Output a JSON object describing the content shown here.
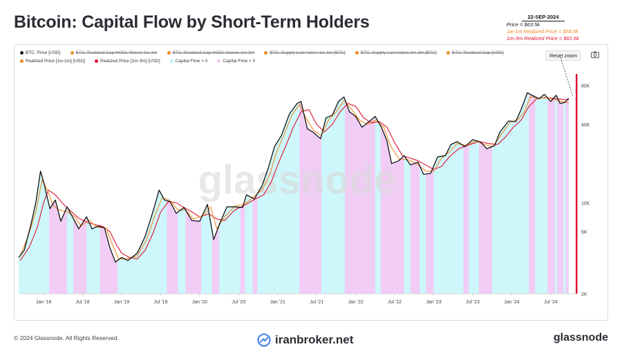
{
  "header": {
    "title": "Bitcoin: Capital Flow by Short-Term Holders"
  },
  "annotation": {
    "date": "22-SEP-2024",
    "price": "Price = $63.5k",
    "rp_1w1m": "1w-1m Realized Price = $58.5k",
    "rp_1m3m": "1m-3m Realized Price = $61.6k"
  },
  "toolbar": {
    "reset_zoom": "Reset zoom"
  },
  "legend": {
    "row1": [
      {
        "label": "BTC: Price [USD]",
        "color": "#111111",
        "active": true
      },
      {
        "label": "BTC: Realized Cap HODL Waves 1w-1m",
        "color": "#f08a24",
        "active": false
      },
      {
        "label": "BTC: Realized Cap HODL Waves 1m-3m",
        "color": "#f08a24",
        "active": false
      },
      {
        "label": "BTC: Supply Last Active 1w-1m [BTC]",
        "color": "#f08a24",
        "active": false
      },
      {
        "label": "BTC: Supply Last Active 1m-3m [BTC]",
        "color": "#f08a24",
        "active": false
      },
      {
        "label": "BTC: Realized Cap [USD]",
        "color": "#f08a24",
        "active": false
      }
    ],
    "row2": [
      {
        "label": "Realized Price [1w-1m] [USD]",
        "color": "#f08a24",
        "active": true
      },
      {
        "label": "Realized Price [1m-3m] [USD]",
        "color": "#e0102e",
        "active": true
      },
      {
        "label": "Capital Flow > 0",
        "color": "#b8f4f8",
        "active": true
      },
      {
        "label": "Capital Flow < 0",
        "color": "#f7c6f4",
        "active": true
      }
    ]
  },
  "chart_data": {
    "type": "line",
    "y_scale": "log",
    "ylim": [
      2000,
      100000
    ],
    "y_ticks": [
      {
        "value": 2000,
        "label": "2K"
      },
      {
        "value": 6000,
        "label": "6K"
      },
      {
        "value": 10000,
        "label": "10K"
      },
      {
        "value": 40000,
        "label": "40K"
      },
      {
        "value": 80000,
        "label": "80K"
      }
    ],
    "xlim": [
      2017.68,
      2024.82
    ],
    "x_ticks": [
      {
        "value": 2018.0,
        "label": "Jan '18"
      },
      {
        "value": 2018.5,
        "label": "Jul '18"
      },
      {
        "value": 2019.0,
        "label": "Jan '19"
      },
      {
        "value": 2019.5,
        "label": "Jul '19"
      },
      {
        "value": 2020.0,
        "label": "Jan '20"
      },
      {
        "value": 2020.5,
        "label": "Jul '20"
      },
      {
        "value": 2021.0,
        "label": "Jan '21"
      },
      {
        "value": 2021.5,
        "label": "Jul '21"
      },
      {
        "value": 2022.0,
        "label": "Jan '22"
      },
      {
        "value": 2022.5,
        "label": "Jul '22"
      },
      {
        "value": 2023.0,
        "label": "Jan '23"
      },
      {
        "value": 2023.5,
        "label": "Jul '23"
      },
      {
        "value": 2024.0,
        "label": "Jan '24"
      },
      {
        "value": 2024.5,
        "label": "Jul '24"
      }
    ],
    "series": [
      {
        "name": "BTC: Price [USD]",
        "color": "#111111",
        "points": [
          [
            2017.68,
            3800
          ],
          [
            2017.75,
            4300
          ],
          [
            2017.83,
            6500
          ],
          [
            2017.9,
            10000
          ],
          [
            2017.96,
            17500
          ],
          [
            2018.0,
            14500
          ],
          [
            2018.08,
            9000
          ],
          [
            2018.15,
            10500
          ],
          [
            2018.22,
            7200
          ],
          [
            2018.3,
            9300
          ],
          [
            2018.38,
            7600
          ],
          [
            2018.45,
            6300
          ],
          [
            2018.55,
            7800
          ],
          [
            2018.62,
            6300
          ],
          [
            2018.7,
            6600
          ],
          [
            2018.78,
            6400
          ],
          [
            2018.85,
            4500
          ],
          [
            2018.92,
            3500
          ],
          [
            2019.0,
            3800
          ],
          [
            2019.08,
            3600
          ],
          [
            2019.2,
            4100
          ],
          [
            2019.3,
            5500
          ],
          [
            2019.4,
            8500
          ],
          [
            2019.48,
            12500
          ],
          [
            2019.55,
            10500
          ],
          [
            2019.62,
            10200
          ],
          [
            2019.7,
            8300
          ],
          [
            2019.8,
            9200
          ],
          [
            2019.9,
            7300
          ],
          [
            2020.0,
            7200
          ],
          [
            2020.1,
            9700
          ],
          [
            2020.18,
            5200
          ],
          [
            2020.26,
            7000
          ],
          [
            2020.35,
            9300
          ],
          [
            2020.45,
            9300
          ],
          [
            2020.55,
            9200
          ],
          [
            2020.6,
            11500
          ],
          [
            2020.7,
            10700
          ],
          [
            2020.8,
            13500
          ],
          [
            2020.88,
            18500
          ],
          [
            2020.96,
            27000
          ],
          [
            2021.05,
            33000
          ],
          [
            2021.15,
            48000
          ],
          [
            2021.25,
            58000
          ],
          [
            2021.3,
            60000
          ],
          [
            2021.38,
            37000
          ],
          [
            2021.45,
            35000
          ],
          [
            2021.55,
            31000
          ],
          [
            2021.62,
            45000
          ],
          [
            2021.7,
            47000
          ],
          [
            2021.78,
            60000
          ],
          [
            2021.85,
            65000
          ],
          [
            2021.92,
            50000
          ],
          [
            2022.0,
            46000
          ],
          [
            2022.08,
            38000
          ],
          [
            2022.17,
            42000
          ],
          [
            2022.25,
            46000
          ],
          [
            2022.33,
            38000
          ],
          [
            2022.4,
            30000
          ],
          [
            2022.46,
            20000
          ],
          [
            2022.55,
            21000
          ],
          [
            2022.62,
            23000
          ],
          [
            2022.7,
            19500
          ],
          [
            2022.8,
            20500
          ],
          [
            2022.87,
            16500
          ],
          [
            2022.96,
            16800
          ],
          [
            2023.05,
            22500
          ],
          [
            2023.15,
            23000
          ],
          [
            2023.22,
            28000
          ],
          [
            2023.3,
            29500
          ],
          [
            2023.4,
            27000
          ],
          [
            2023.5,
            30500
          ],
          [
            2023.6,
            29300
          ],
          [
            2023.68,
            26000
          ],
          [
            2023.78,
            27500
          ],
          [
            2023.85,
            35000
          ],
          [
            2023.96,
            42500
          ],
          [
            2024.05,
            42000
          ],
          [
            2024.12,
            52000
          ],
          [
            2024.2,
            70000
          ],
          [
            2024.28,
            66000
          ],
          [
            2024.35,
            63000
          ],
          [
            2024.42,
            68000
          ],
          [
            2024.5,
            60000
          ],
          [
            2024.57,
            67000
          ],
          [
            2024.62,
            58000
          ],
          [
            2024.68,
            59000
          ],
          [
            2024.73,
            63500
          ]
        ]
      },
      {
        "name": "Realized Price [1w-1m] [USD]",
        "color": "#f08a24",
        "points": [
          [
            2017.7,
            3900
          ],
          [
            2017.8,
            5500
          ],
          [
            2017.9,
            8500
          ],
          [
            2017.98,
            15000
          ],
          [
            2018.05,
            12500
          ],
          [
            2018.12,
            9500
          ],
          [
            2018.2,
            8800
          ],
          [
            2018.3,
            8500
          ],
          [
            2018.4,
            7800
          ],
          [
            2018.48,
            6600
          ],
          [
            2018.58,
            7400
          ],
          [
            2018.68,
            6500
          ],
          [
            2018.8,
            6400
          ],
          [
            2018.88,
            4800
          ],
          [
            2018.96,
            3700
          ],
          [
            2019.05,
            3700
          ],
          [
            2019.2,
            3900
          ],
          [
            2019.32,
            5200
          ],
          [
            2019.42,
            7800
          ],
          [
            2019.52,
            11000
          ],
          [
            2019.62,
            10400
          ],
          [
            2019.72,
            8800
          ],
          [
            2019.82,
            8800
          ],
          [
            2019.92,
            7500
          ],
          [
            2020.05,
            8000
          ],
          [
            2020.14,
            9300
          ],
          [
            2020.22,
            6300
          ],
          [
            2020.32,
            7800
          ],
          [
            2020.45,
            9400
          ],
          [
            2020.58,
            9800
          ],
          [
            2020.68,
            11000
          ],
          [
            2020.8,
            12500
          ],
          [
            2020.9,
            16500
          ],
          [
            2020.98,
            24000
          ],
          [
            2021.08,
            33000
          ],
          [
            2021.18,
            47000
          ],
          [
            2021.28,
            57000
          ],
          [
            2021.36,
            45000
          ],
          [
            2021.46,
            36000
          ],
          [
            2021.56,
            33000
          ],
          [
            2021.65,
            43000
          ],
          [
            2021.75,
            50000
          ],
          [
            2021.85,
            61000
          ],
          [
            2021.95,
            52000
          ],
          [
            2022.05,
            43000
          ],
          [
            2022.15,
            40000
          ],
          [
            2022.25,
            43000
          ],
          [
            2022.36,
            38000
          ],
          [
            2022.45,
            27000
          ],
          [
            2022.56,
            21500
          ],
          [
            2022.66,
            21500
          ],
          [
            2022.78,
            20000
          ],
          [
            2022.9,
            17500
          ],
          [
            2023.0,
            17500
          ],
          [
            2023.1,
            22000
          ],
          [
            2023.2,
            24500
          ],
          [
            2023.3,
            28500
          ],
          [
            2023.42,
            27500
          ],
          [
            2023.54,
            29800
          ],
          [
            2023.65,
            28000
          ],
          [
            2023.76,
            27000
          ],
          [
            2023.86,
            33000
          ],
          [
            2023.98,
            41500
          ],
          [
            2024.08,
            43500
          ],
          [
            2024.16,
            50000
          ],
          [
            2024.24,
            65000
          ],
          [
            2024.34,
            63500
          ],
          [
            2024.44,
            64500
          ],
          [
            2024.54,
            62000
          ],
          [
            2024.64,
            60000
          ],
          [
            2024.73,
            58500
          ]
        ]
      },
      {
        "name": "Realized Price [1m-3m] [USD]",
        "color": "#e0102e",
        "points": [
          [
            2017.7,
            3600
          ],
          [
            2017.82,
            4600
          ],
          [
            2017.92,
            6500
          ],
          [
            2018.0,
            10000
          ],
          [
            2018.06,
            12500
          ],
          [
            2018.15,
            11500
          ],
          [
            2018.25,
            9800
          ],
          [
            2018.35,
            8600
          ],
          [
            2018.45,
            7600
          ],
          [
            2018.55,
            7100
          ],
          [
            2018.65,
            6800
          ],
          [
            2018.75,
            6600
          ],
          [
            2018.85,
            6000
          ],
          [
            2018.93,
            4800
          ],
          [
            2019.0,
            4100
          ],
          [
            2019.1,
            3800
          ],
          [
            2019.2,
            3700
          ],
          [
            2019.3,
            4300
          ],
          [
            2019.4,
            5800
          ],
          [
            2019.5,
            8500
          ],
          [
            2019.6,
            10200
          ],
          [
            2019.7,
            10000
          ],
          [
            2019.8,
            9200
          ],
          [
            2019.9,
            8500
          ],
          [
            2020.0,
            7800
          ],
          [
            2020.12,
            8200
          ],
          [
            2020.22,
            7500
          ],
          [
            2020.32,
            7300
          ],
          [
            2020.45,
            8800
          ],
          [
            2020.58,
            9600
          ],
          [
            2020.7,
            10600
          ],
          [
            2020.82,
            11500
          ],
          [
            2020.92,
            14500
          ],
          [
            2021.0,
            19500
          ],
          [
            2021.1,
            27000
          ],
          [
            2021.2,
            38000
          ],
          [
            2021.3,
            50000
          ],
          [
            2021.4,
            52000
          ],
          [
            2021.5,
            40000
          ],
          [
            2021.6,
            35000
          ],
          [
            2021.7,
            40000
          ],
          [
            2021.8,
            50000
          ],
          [
            2021.9,
            58000
          ],
          [
            2022.0,
            55000
          ],
          [
            2022.1,
            45000
          ],
          [
            2022.2,
            41000
          ],
          [
            2022.3,
            42000
          ],
          [
            2022.4,
            38000
          ],
          [
            2022.5,
            29000
          ],
          [
            2022.6,
            23000
          ],
          [
            2022.7,
            22000
          ],
          [
            2022.8,
            21000
          ],
          [
            2022.9,
            19500
          ],
          [
            2023.0,
            18000
          ],
          [
            2023.1,
            19000
          ],
          [
            2023.2,
            22500
          ],
          [
            2023.32,
            26000
          ],
          [
            2023.45,
            27800
          ],
          [
            2023.58,
            29500
          ],
          [
            2023.7,
            28500
          ],
          [
            2023.82,
            28000
          ],
          [
            2023.92,
            32000
          ],
          [
            2024.02,
            38000
          ],
          [
            2024.12,
            43000
          ],
          [
            2024.22,
            55000
          ],
          [
            2024.32,
            63000
          ],
          [
            2024.42,
            64000
          ],
          [
            2024.52,
            63500
          ],
          [
            2024.62,
            62500
          ],
          [
            2024.73,
            61600
          ]
        ]
      }
    ],
    "capital_flow_negative_periods": [
      [
        2018.07,
        2018.3
      ],
      [
        2018.38,
        2018.55
      ],
      [
        2018.72,
        2018.95
      ],
      [
        2019.58,
        2019.72
      ],
      [
        2019.82,
        2020.02
      ],
      [
        2020.16,
        2020.25
      ],
      [
        2020.52,
        2020.58
      ],
      [
        2020.68,
        2020.74
      ],
      [
        2021.28,
        2021.56
      ],
      [
        2021.86,
        2022.25
      ],
      [
        2022.32,
        2022.62
      ],
      [
        2022.7,
        2022.82
      ],
      [
        2022.9,
        2023.0
      ],
      [
        2023.38,
        2023.45
      ],
      [
        2023.58,
        2023.75
      ],
      [
        2024.22,
        2024.3
      ],
      [
        2024.46,
        2024.55
      ],
      [
        2024.58,
        2024.66
      ],
      [
        2024.69,
        2024.73
      ]
    ],
    "watermark": "glassnode"
  },
  "footer": {
    "copyright": "© 2024 Glassnode. All Rights Reserved.",
    "site": "iranbroker.net",
    "brand": "glassnode"
  }
}
